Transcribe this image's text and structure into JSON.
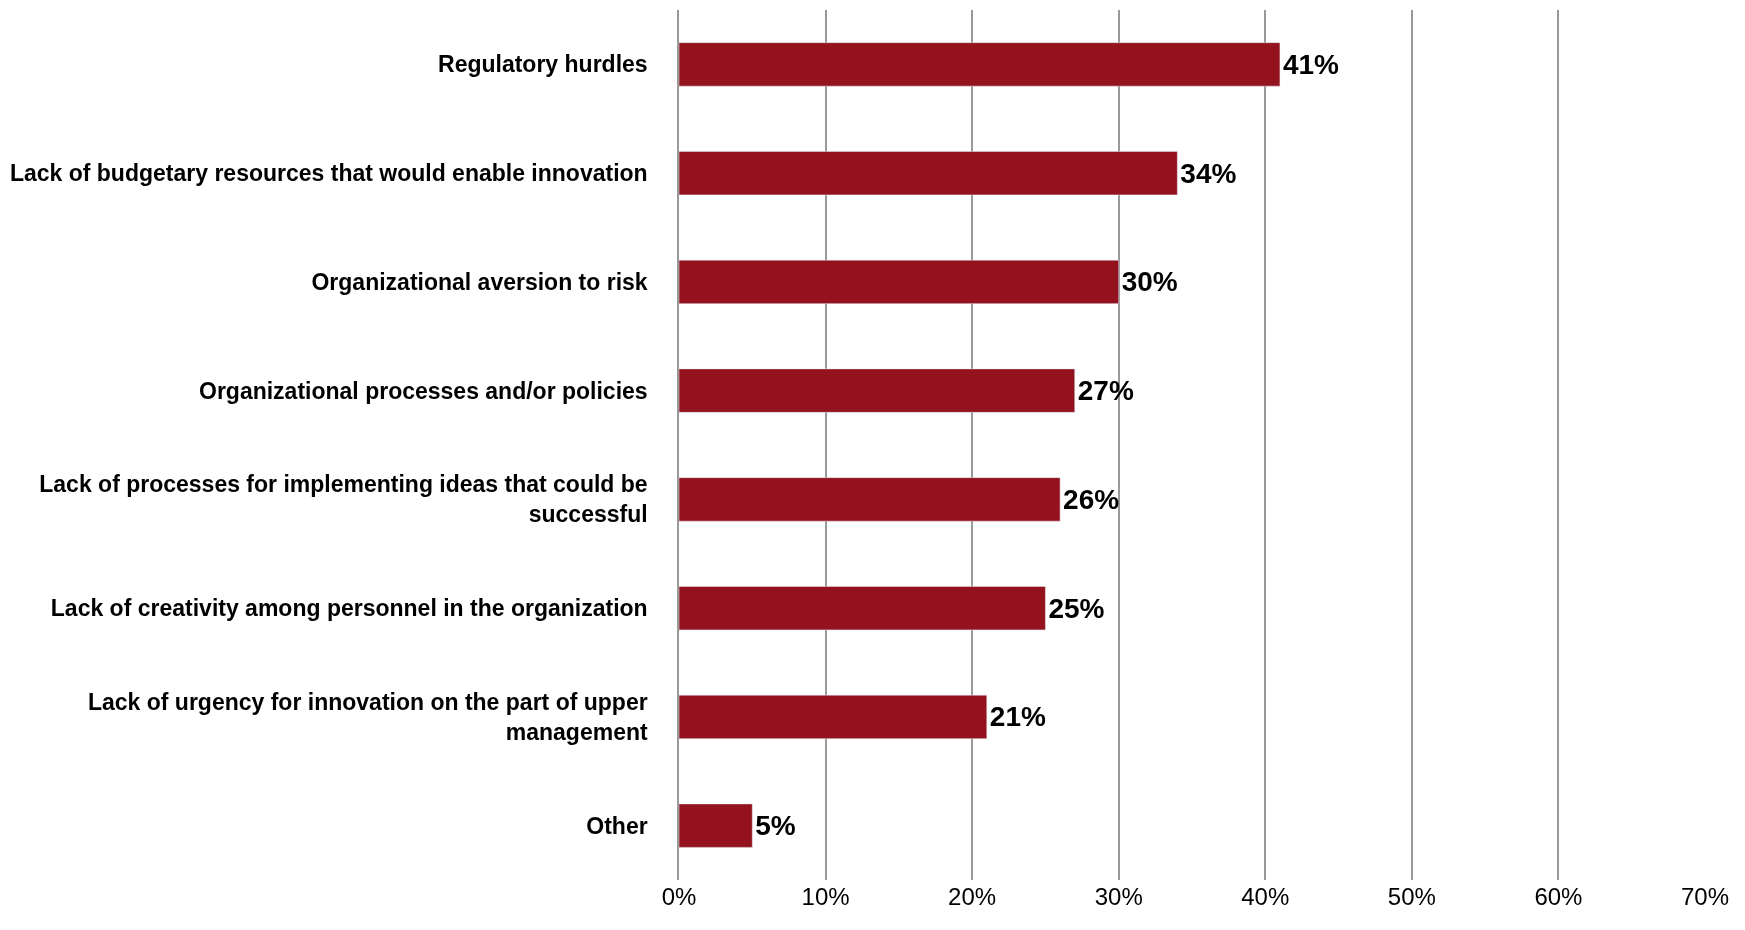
{
  "chart_data": {
    "type": "bar",
    "orientation": "horizontal",
    "categories": [
      "Regulatory hurdles",
      "Lack of budgetary resources that would enable innovation",
      "Organizational aversion to risk",
      "Organizational processes and/or policies",
      "Lack of processes for implementing ideas that could be successful",
      "Lack of creativity among personnel in the organization",
      "Lack of urgency for innovation on the part of upper management",
      "Other"
    ],
    "values": [
      41,
      34,
      30,
      27,
      26,
      25,
      21,
      5
    ],
    "value_labels": [
      "41%",
      "34%",
      "30%",
      "27%",
      "26%",
      "25%",
      "21%",
      "5%"
    ],
    "color": "#93121e",
    "xlim": [
      0,
      70
    ],
    "xticks": [
      {
        "value": 0,
        "label": "0%"
      },
      {
        "value": 10,
        "label": "10%"
      },
      {
        "value": 20,
        "label": "20%"
      },
      {
        "value": 30,
        "label": "30%"
      },
      {
        "value": 40,
        "label": "40%"
      },
      {
        "value": 50,
        "label": "50%"
      },
      {
        "value": 60,
        "label": "60%"
      },
      {
        "value": 70,
        "label": "70%"
      }
    ],
    "grid": "x",
    "legend": false
  }
}
